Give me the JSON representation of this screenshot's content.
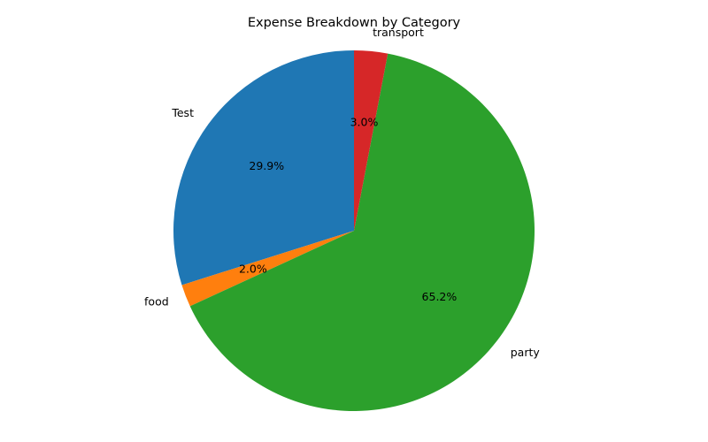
{
  "chart_data": {
    "type": "pie",
    "title": "Expense Breakdown by Category",
    "start_angle_deg": 90,
    "direction": "counterclockwise",
    "slices": [
      {
        "label": "Test",
        "value": 29.9,
        "pct_label": "29.9%",
        "color": "#1f77b4"
      },
      {
        "label": "food",
        "value": 2.0,
        "pct_label": "2.0%",
        "color": "#ff7f0e"
      },
      {
        "label": "party",
        "value": 65.2,
        "pct_label": "65.2%",
        "color": "#2ca02c"
      },
      {
        "label": "transport",
        "value": 3.0,
        "pct_label": "3.0%",
        "color": "#d62728"
      }
    ]
  }
}
